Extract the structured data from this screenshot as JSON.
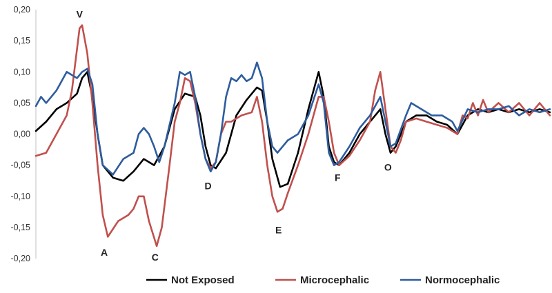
{
  "chart_data": {
    "type": "line",
    "title": "",
    "xlabel": "",
    "ylabel": "",
    "ylim": [
      -0.2,
      0.2
    ],
    "xlim": [
      0,
      100
    ],
    "yticks": [
      0.2,
      0.15,
      0.1,
      0.05,
      0.0,
      -0.05,
      -0.1,
      -0.15,
      -0.2
    ],
    "ytick_labels": [
      "0,20",
      "0,15",
      "0,10",
      "0,05",
      "0,00",
      "-0,05",
      "-0,10",
      "-0,15",
      "-0,20"
    ],
    "grid": false,
    "legend_position": "bottom",
    "annotations": [
      {
        "text": "V",
        "x": 8.5,
        "y": 0.193
      },
      {
        "text": "A",
        "x": 13.3,
        "y": -0.19
      },
      {
        "text": "C",
        "x": 23.2,
        "y": -0.198
      },
      {
        "text": "D",
        "x": 33.5,
        "y": -0.083
      },
      {
        "text": "E",
        "x": 47.2,
        "y": -0.154
      },
      {
        "text": "F",
        "x": 58.7,
        "y": -0.07
      },
      {
        "text": "O",
        "x": 68.5,
        "y": -0.053
      }
    ],
    "series": [
      {
        "name": "Not Exposed",
        "color": "#000000",
        "points": [
          [
            0,
            0.005
          ],
          [
            2,
            0.02
          ],
          [
            4,
            0.04
          ],
          [
            6,
            0.05
          ],
          [
            8,
            0.065
          ],
          [
            9,
            0.09
          ],
          [
            10,
            0.1
          ],
          [
            11,
            0.06
          ],
          [
            12,
            0.0
          ],
          [
            13,
            -0.05
          ],
          [
            15,
            -0.07
          ],
          [
            17,
            -0.075
          ],
          [
            19,
            -0.06
          ],
          [
            21,
            -0.04
          ],
          [
            23,
            -0.05
          ],
          [
            25,
            -0.02
          ],
          [
            27,
            0.04
          ],
          [
            29,
            0.065
          ],
          [
            31,
            0.06
          ],
          [
            32,
            0.03
          ],
          [
            33,
            -0.02
          ],
          [
            34,
            -0.05
          ],
          [
            35,
            -0.055
          ],
          [
            37,
            -0.03
          ],
          [
            39,
            0.03
          ],
          [
            41,
            0.055
          ],
          [
            43,
            0.075
          ],
          [
            44,
            0.07
          ],
          [
            45,
            0.02
          ],
          [
            46,
            -0.04
          ],
          [
            47.5,
            -0.085
          ],
          [
            49,
            -0.08
          ],
          [
            51,
            -0.03
          ],
          [
            53,
            0.04
          ],
          [
            55,
            0.1
          ],
          [
            56,
            0.06
          ],
          [
            57,
            -0.02
          ],
          [
            58,
            -0.045
          ],
          [
            59,
            -0.05
          ],
          [
            61,
            -0.03
          ],
          [
            63,
            0.0
          ],
          [
            65,
            0.02
          ],
          [
            67,
            0.04
          ],
          [
            68,
            0.0
          ],
          [
            69,
            -0.03
          ],
          [
            70,
            -0.02
          ],
          [
            72,
            0.02
          ],
          [
            74,
            0.03
          ],
          [
            76,
            0.03
          ],
          [
            78,
            0.02
          ],
          [
            80,
            0.015
          ],
          [
            82,
            0.0
          ],
          [
            84,
            0.03
          ],
          [
            86,
            0.04
          ],
          [
            88,
            0.035
          ],
          [
            90,
            0.04
          ],
          [
            92,
            0.035
          ],
          [
            94,
            0.04
          ],
          [
            96,
            0.035
          ],
          [
            98,
            0.04
          ],
          [
            100,
            0.035
          ]
        ]
      },
      {
        "name": "Microcephalic",
        "color": "#c0504d",
        "points": [
          [
            0,
            -0.035
          ],
          [
            2,
            -0.03
          ],
          [
            4,
            0.0
          ],
          [
            6,
            0.03
          ],
          [
            7,
            0.07
          ],
          [
            8.5,
            0.17
          ],
          [
            9,
            0.175
          ],
          [
            10,
            0.13
          ],
          [
            11,
            0.05
          ],
          [
            12,
            -0.05
          ],
          [
            13,
            -0.13
          ],
          [
            14,
            -0.165
          ],
          [
            16,
            -0.14
          ],
          [
            18,
            -0.13
          ],
          [
            19,
            -0.12
          ],
          [
            20,
            -0.1
          ],
          [
            21,
            -0.1
          ],
          [
            22,
            -0.14
          ],
          [
            23.5,
            -0.18
          ],
          [
            24.5,
            -0.15
          ],
          [
            26,
            -0.05
          ],
          [
            27,
            0.02
          ],
          [
            28,
            0.05
          ],
          [
            29,
            0.09
          ],
          [
            30,
            0.085
          ],
          [
            31,
            0.05
          ],
          [
            32,
            0.0
          ],
          [
            33,
            -0.04
          ],
          [
            34,
            -0.055
          ],
          [
            35,
            -0.045
          ],
          [
            36,
            0.0
          ],
          [
            37,
            0.02
          ],
          [
            38,
            0.02
          ],
          [
            40,
            0.03
          ],
          [
            42,
            0.035
          ],
          [
            43,
            0.06
          ],
          [
            44,
            0.02
          ],
          [
            45,
            -0.05
          ],
          [
            46,
            -0.1
          ],
          [
            47,
            -0.125
          ],
          [
            48,
            -0.12
          ],
          [
            49,
            -0.095
          ],
          [
            51,
            -0.05
          ],
          [
            53,
            0.0
          ],
          [
            55,
            0.06
          ],
          [
            56,
            0.06
          ],
          [
            57,
            0.02
          ],
          [
            58,
            -0.03
          ],
          [
            59,
            -0.05
          ],
          [
            61,
            -0.035
          ],
          [
            63,
            -0.01
          ],
          [
            65,
            0.02
          ],
          [
            66,
            0.07
          ],
          [
            67,
            0.1
          ],
          [
            68,
            0.04
          ],
          [
            69,
            -0.02
          ],
          [
            70,
            -0.03
          ],
          [
            71,
            -0.01
          ],
          [
            72,
            0.02
          ],
          [
            74,
            0.025
          ],
          [
            76,
            0.02
          ],
          [
            78,
            0.015
          ],
          [
            80,
            0.01
          ],
          [
            82,
            0.0
          ],
          [
            83,
            0.03
          ],
          [
            84,
            0.025
          ],
          [
            85,
            0.05
          ],
          [
            86,
            0.03
          ],
          [
            87,
            0.055
          ],
          [
            88,
            0.035
          ],
          [
            90,
            0.05
          ],
          [
            92,
            0.035
          ],
          [
            94,
            0.05
          ],
          [
            96,
            0.03
          ],
          [
            98,
            0.05
          ],
          [
            100,
            0.03
          ]
        ]
      },
      {
        "name": "Normocephalic",
        "color": "#2e5c9e",
        "points": [
          [
            0,
            0.045
          ],
          [
            1,
            0.06
          ],
          [
            2,
            0.05
          ],
          [
            4,
            0.07
          ],
          [
            6,
            0.1
          ],
          [
            8,
            0.09
          ],
          [
            9,
            0.1
          ],
          [
            10,
            0.105
          ],
          [
            11,
            0.08
          ],
          [
            12,
            0.0
          ],
          [
            13,
            -0.05
          ],
          [
            15,
            -0.065
          ],
          [
            17,
            -0.04
          ],
          [
            19,
            -0.03
          ],
          [
            20,
            0.0
          ],
          [
            21,
            0.01
          ],
          [
            22,
            0.0
          ],
          [
            23,
            -0.02
          ],
          [
            24,
            -0.045
          ],
          [
            25,
            -0.02
          ],
          [
            27,
            0.05
          ],
          [
            28,
            0.1
          ],
          [
            29,
            0.095
          ],
          [
            30,
            0.1
          ],
          [
            31,
            0.06
          ],
          [
            32,
            0.0
          ],
          [
            33,
            -0.04
          ],
          [
            34,
            -0.06
          ],
          [
            35,
            -0.045
          ],
          [
            36,
            0.0
          ],
          [
            37,
            0.06
          ],
          [
            38,
            0.09
          ],
          [
            39,
            0.085
          ],
          [
            40,
            0.095
          ],
          [
            41,
            0.085
          ],
          [
            42,
            0.09
          ],
          [
            43,
            0.115
          ],
          [
            44,
            0.09
          ],
          [
            45,
            0.02
          ],
          [
            46,
            -0.02
          ],
          [
            47,
            -0.03
          ],
          [
            49,
            -0.01
          ],
          [
            50,
            -0.005
          ],
          [
            51,
            0.0
          ],
          [
            53,
            0.03
          ],
          [
            55,
            0.08
          ],
          [
            56,
            0.05
          ],
          [
            57,
            -0.03
          ],
          [
            58,
            -0.05
          ],
          [
            59,
            -0.045
          ],
          [
            61,
            -0.02
          ],
          [
            63,
            0.01
          ],
          [
            65,
            0.03
          ],
          [
            67,
            0.06
          ],
          [
            68,
            0.02
          ],
          [
            69,
            -0.02
          ],
          [
            70,
            -0.015
          ],
          [
            72,
            0.03
          ],
          [
            73,
            0.05
          ],
          [
            75,
            0.04
          ],
          [
            77,
            0.03
          ],
          [
            79,
            0.03
          ],
          [
            81,
            0.02
          ],
          [
            82,
            0.005
          ],
          [
            84,
            0.04
          ],
          [
            86,
            0.035
          ],
          [
            88,
            0.04
          ],
          [
            90,
            0.04
          ],
          [
            92,
            0.045
          ],
          [
            94,
            0.03
          ],
          [
            96,
            0.04
          ],
          [
            98,
            0.035
          ],
          [
            100,
            0.04
          ]
        ]
      }
    ]
  }
}
